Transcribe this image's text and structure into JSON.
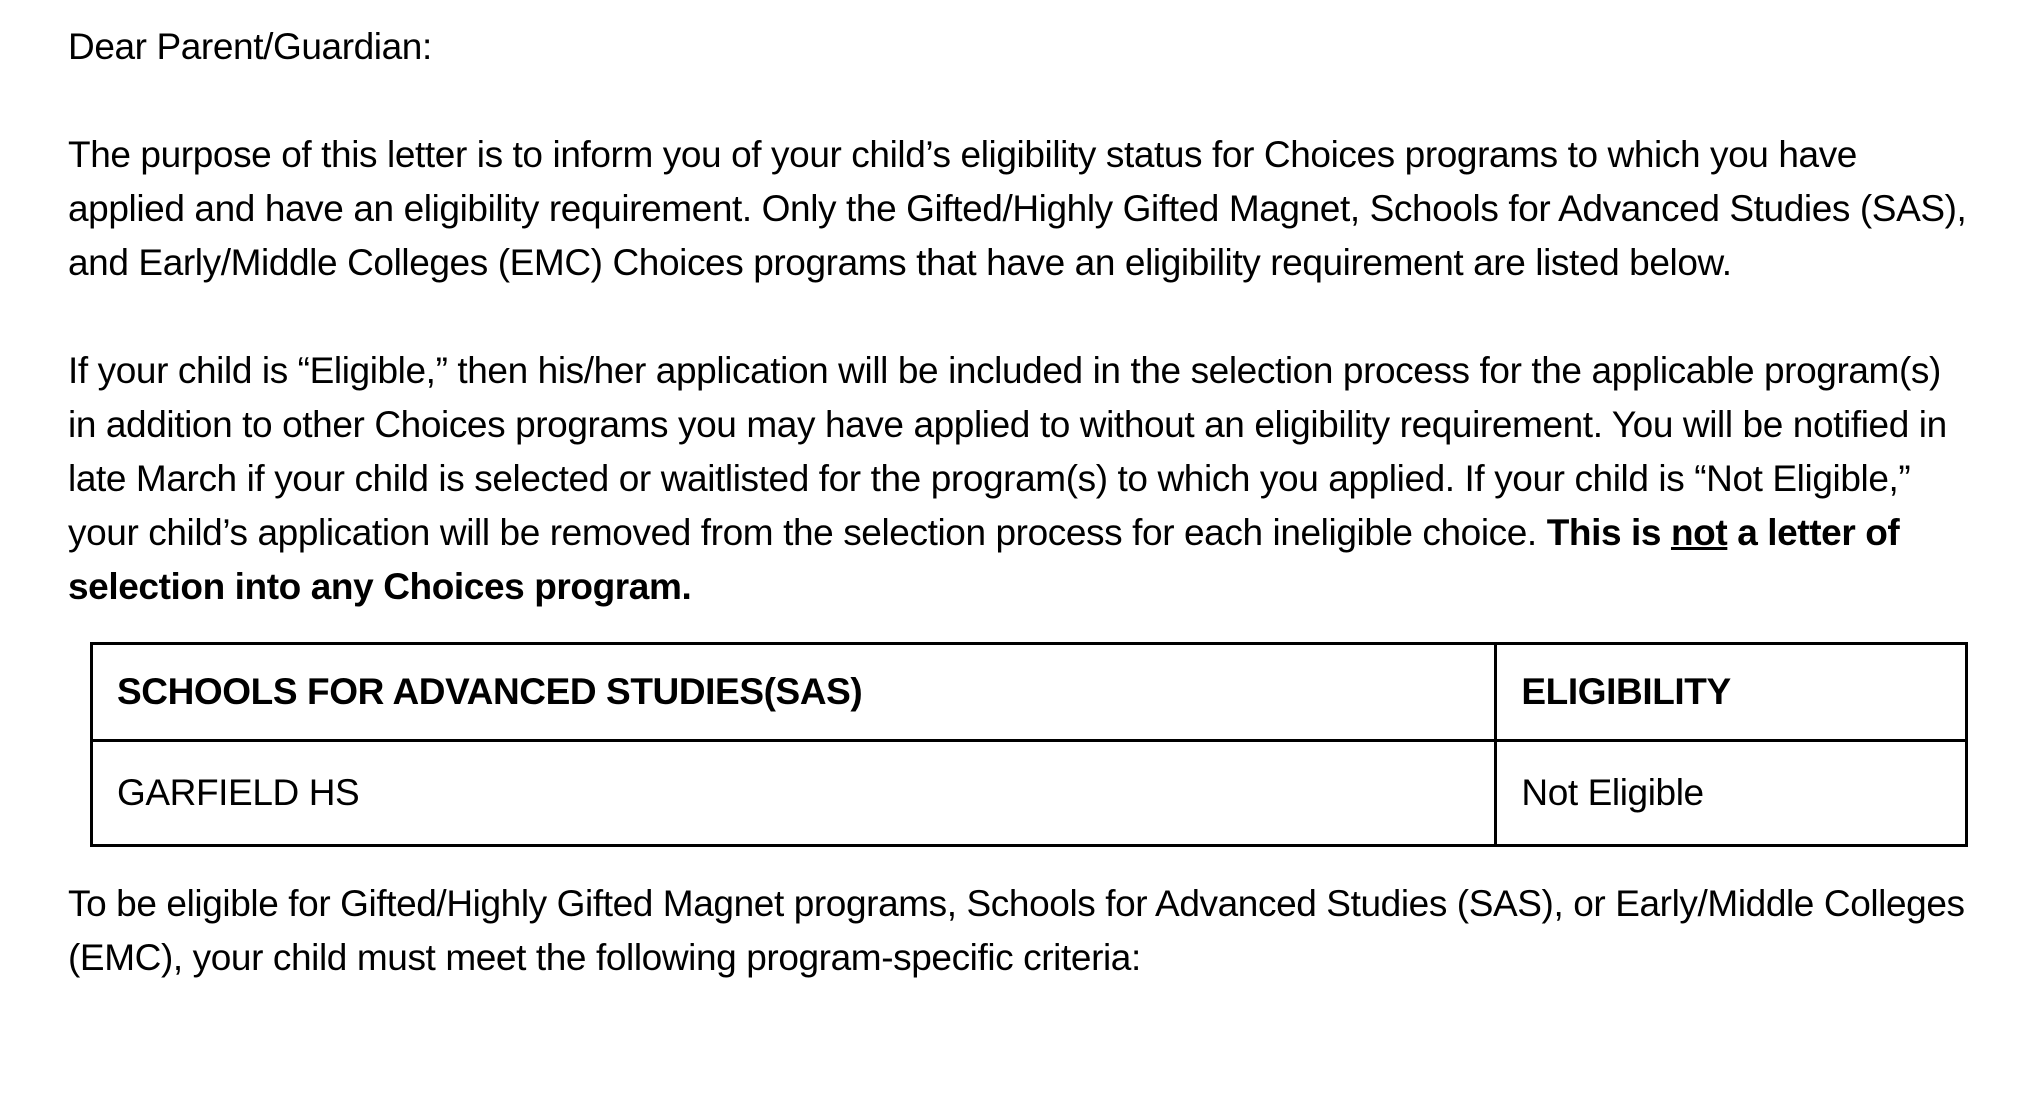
{
  "document": {
    "salutation": "Dear Parent/Guardian:",
    "paragraphs": {
      "intro": {
        "segments": [
          {
            "text": "The purpose of this letter is to inform you of your child’s eligibility status for Choices programs to which you have applied and have an eligibility requirement. Only the Gifted/Highly Gifted Magnet, Schools for Advanced Studies (SAS), and Early/Middle Colleges (EMC) Choices programs that have an eligibility requirement are listed below."
          }
        ]
      },
      "eligibility_explanation": {
        "segments": [
          {
            "text": "If your child is “Eligible,” then his/her application will be included in the selection process for the applicable program(s) in addition to other Choices programs you may have applied to without an eligibility requirement. You will be notified in late March if your child is selected or waitlisted for the program(s) to which you applied. If your child is “Not Eligible,” your child’s application will be removed from the selection process for each ineligible choice. "
          },
          {
            "text": "This is ",
            "bold": true
          },
          {
            "text": "not",
            "bold": true,
            "underline": true
          },
          {
            "text": " a letter of selection into any Choices program.",
            "bold": true
          }
        ]
      },
      "criteria_intro": {
        "segments": [
          {
            "text": "To be eligible for Gifted/Highly Gifted Magnet programs, Schools for Advanced Studies (SAS), or Early/Middle Colleges (EMC), your child must meet the following program-specific criteria:"
          }
        ]
      }
    },
    "table": {
      "headers": [
        "SCHOOLS FOR ADVANCED STUDIES(SAS)",
        "ELIGIBILITY"
      ],
      "rows": [
        [
          "GARFIELD HS",
          "Not Eligible"
        ]
      ]
    }
  }
}
